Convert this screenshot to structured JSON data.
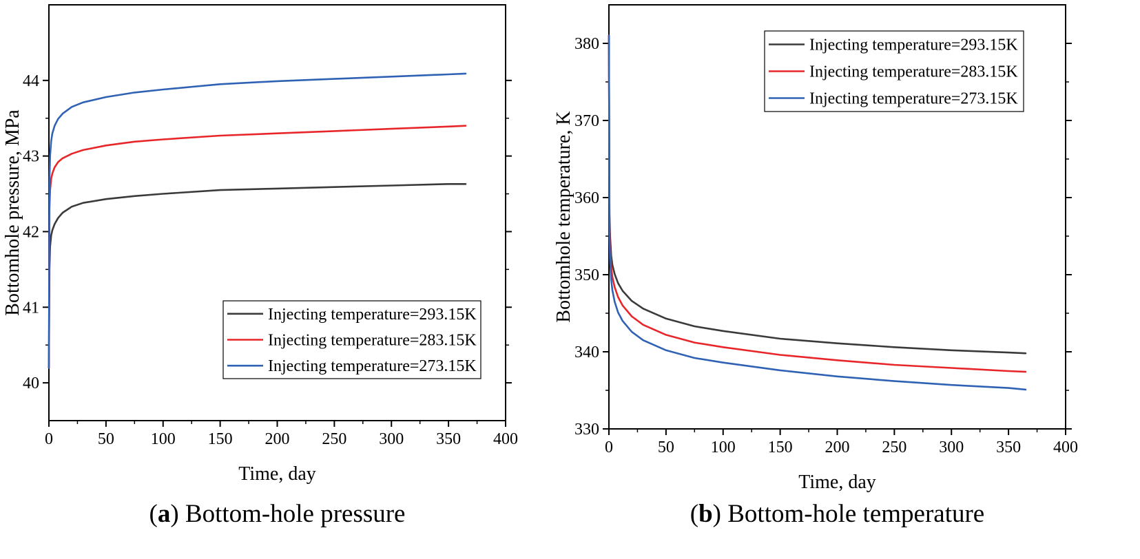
{
  "chart_data": [
    {
      "type": "line",
      "caption_letter": "a",
      "caption_text": "Bottom-hole pressure",
      "xlabel": "Time, day",
      "ylabel": "Bottomhole pressure, MPa",
      "xlim": [
        0,
        400
      ],
      "ylim": [
        39.5,
        45.0
      ],
      "xticks": [
        0,
        50,
        100,
        150,
        200,
        250,
        300,
        350,
        400
      ],
      "yticks": [
        40,
        41,
        42,
        43,
        44
      ],
      "legend_position": "lower-right",
      "series": [
        {
          "name": "Injecting temperature=293.15K",
          "color": "#3a3a3a",
          "x": [
            0,
            0.5,
            1,
            2,
            3,
            5,
            8,
            12,
            20,
            30,
            50,
            75,
            100,
            150,
            200,
            250,
            300,
            350,
            365
          ],
          "y": [
            40.2,
            41.5,
            41.8,
            41.95,
            42.02,
            42.1,
            42.18,
            42.25,
            42.33,
            42.38,
            42.43,
            42.47,
            42.5,
            42.55,
            42.57,
            42.59,
            42.61,
            42.63,
            42.63
          ]
        },
        {
          "name": "Injecting temperature=283.15K",
          "color": "#e8262a",
          "x": [
            0,
            0.5,
            1,
            2,
            3,
            5,
            8,
            12,
            20,
            30,
            50,
            75,
            100,
            150,
            200,
            250,
            300,
            350,
            365
          ],
          "y": [
            40.2,
            42.3,
            42.55,
            42.7,
            42.77,
            42.85,
            42.92,
            42.97,
            43.03,
            43.08,
            43.14,
            43.19,
            43.22,
            43.27,
            43.3,
            43.33,
            43.36,
            43.39,
            43.4
          ]
        },
        {
          "name": "Injecting temperature=273.15K",
          "color": "#2f62b4",
          "x": [
            0,
            0.5,
            1,
            2,
            3,
            5,
            8,
            12,
            20,
            30,
            50,
            75,
            100,
            150,
            200,
            250,
            300,
            350,
            365
          ],
          "y": [
            40.2,
            42.7,
            43.0,
            43.2,
            43.3,
            43.4,
            43.49,
            43.56,
            43.65,
            43.71,
            43.78,
            43.84,
            43.88,
            43.95,
            43.99,
            44.02,
            44.05,
            44.08,
            44.09
          ]
        }
      ]
    },
    {
      "type": "line",
      "caption_letter": "b",
      "caption_text": "Bottom-hole temperature",
      "xlabel": "Time, day",
      "ylabel": "Bottomhole temperature, K",
      "xlim": [
        0,
        400
      ],
      "ylim": [
        330,
        385
      ],
      "xticks": [
        0,
        50,
        100,
        150,
        200,
        250,
        300,
        350,
        400
      ],
      "yticks": [
        330,
        340,
        350,
        360,
        370,
        380
      ],
      "legend_position": "top-right",
      "series": [
        {
          "name": "Injecting temperature=293.15K",
          "color": "#3a3a3a",
          "x": [
            0,
            0.5,
            1,
            2,
            3,
            5,
            8,
            12,
            20,
            30,
            50,
            75,
            100,
            150,
            200,
            250,
            300,
            350,
            365
          ],
          "y": [
            381,
            358,
            355,
            352.5,
            351.3,
            350.1,
            348.9,
            347.9,
            346.6,
            345.6,
            344.3,
            343.3,
            342.7,
            341.7,
            341.1,
            340.6,
            340.2,
            339.9,
            339.8
          ]
        },
        {
          "name": "Injecting temperature=283.15K",
          "color": "#e8262a",
          "x": [
            0,
            0.5,
            1,
            2,
            3,
            5,
            8,
            12,
            20,
            30,
            50,
            75,
            100,
            150,
            200,
            250,
            300,
            350,
            365
          ],
          "y": [
            381,
            356.5,
            353.5,
            351,
            349.7,
            348.4,
            347.1,
            346.0,
            344.6,
            343.5,
            342.2,
            341.2,
            340.6,
            339.6,
            338.9,
            338.3,
            337.9,
            337.5,
            337.4
          ]
        },
        {
          "name": "Injecting temperature=273.15K",
          "color": "#2f62b4",
          "x": [
            0,
            0.5,
            1,
            2,
            3,
            5,
            8,
            12,
            20,
            30,
            50,
            75,
            100,
            150,
            200,
            250,
            300,
            350,
            365
          ],
          "y": [
            381,
            355,
            352,
            349.3,
            348.0,
            346.5,
            345.1,
            344.0,
            342.6,
            341.5,
            340.2,
            339.2,
            338.6,
            337.6,
            336.8,
            336.2,
            335.7,
            335.3,
            335.1
          ]
        }
      ]
    }
  ]
}
